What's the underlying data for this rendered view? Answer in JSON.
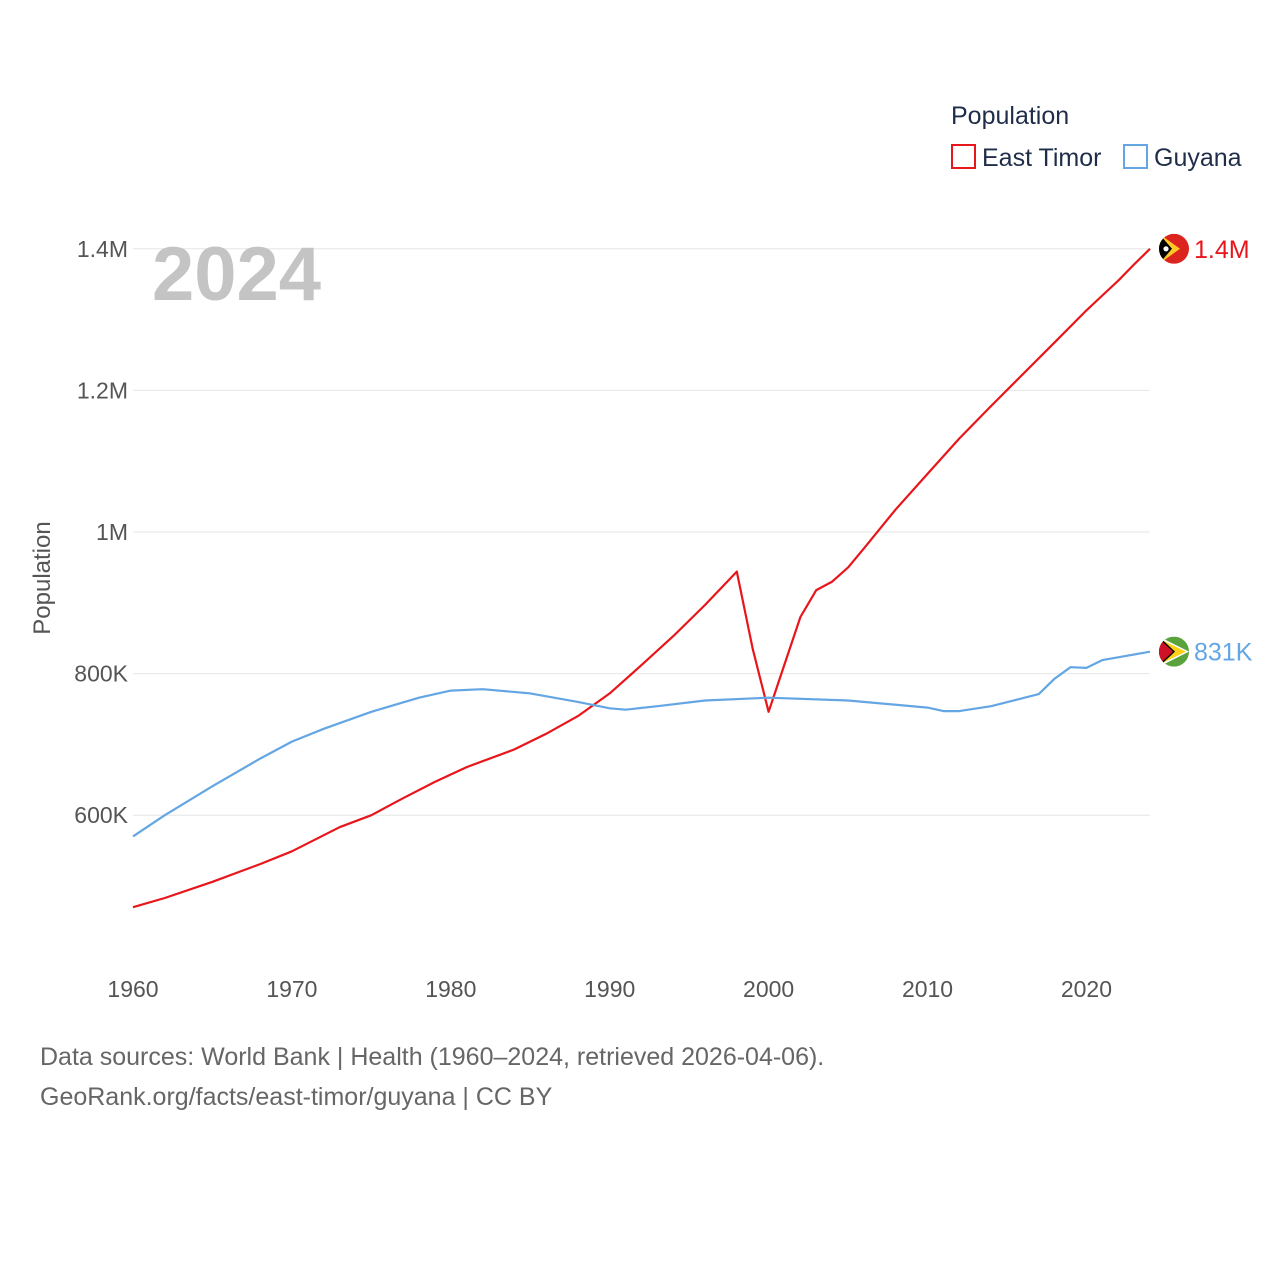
{
  "chart_data": {
    "type": "line",
    "year_label": "2024",
    "ylabel": "Population",
    "xlabel": "",
    "xlim": [
      1960,
      2024
    ],
    "ylim": [
      440000,
      1420000
    ],
    "x_ticks": [
      1960,
      1970,
      1980,
      1990,
      2000,
      2010,
      2020
    ],
    "x_tick_labels": [
      "1960",
      "1970",
      "1980",
      "1990",
      "2000",
      "2010",
      "2020"
    ],
    "y_ticks": [
      600000,
      800000,
      1000000,
      1200000,
      1400000
    ],
    "y_tick_labels": [
      "600K",
      "800K",
      "1M",
      "1.2M",
      "1.4M"
    ],
    "grid": true,
    "legend": {
      "title": "Population",
      "position": "top-right",
      "items": [
        {
          "name": "East Timor",
          "color": "#e8161b"
        },
        {
          "name": "Guyana",
          "color": "#64a6e4"
        }
      ]
    },
    "series": [
      {
        "name": "East Timor",
        "color": "#e8161b",
        "end_label": "1.4M",
        "flag_icon": "east-timor-flag-icon",
        "x": [
          1960,
          1962,
          1965,
          1968,
          1970,
          1973,
          1975,
          1977,
          1979,
          1981,
          1984,
          1986,
          1988,
          1990,
          1992,
          1994,
          1996,
          1998,
          1999,
          2000,
          2001,
          2002,
          2003,
          2004,
          2005,
          2006,
          2008,
          2010,
          2012,
          2014,
          2016,
          2018,
          2020,
          2021,
          2022,
          2023,
          2024
        ],
        "values": [
          470000,
          483000,
          506000,
          531000,
          549000,
          583000,
          600000,
          624000,
          647000,
          668000,
          693000,
          715000,
          740000,
          772000,
          812000,
          853000,
          897000,
          944000,
          835000,
          746000,
          813000,
          880000,
          918000,
          930000,
          950000,
          977000,
          1032000,
          1082000,
          1132000,
          1178000,
          1223000,
          1268000,
          1313000,
          1334000,
          1355000,
          1378000,
          1400000
        ]
      },
      {
        "name": "Guyana",
        "color": "#64a6e4",
        "end_label": "831K",
        "flag_icon": "guyana-flag-icon",
        "x": [
          1960,
          1962,
          1965,
          1968,
          1970,
          1972,
          1975,
          1978,
          1980,
          1982,
          1985,
          1988,
          1990,
          1991,
          1993,
          1996,
          2000,
          2005,
          2010,
          2011,
          2012,
          2014,
          2017,
          2018,
          2019,
          2020,
          2021,
          2022,
          2024
        ],
        "values": [
          570000,
          600000,
          641000,
          680000,
          704000,
          722000,
          746000,
          766000,
          776000,
          778000,
          772000,
          760000,
          751000,
          749000,
          754000,
          762000,
          766000,
          762000,
          752000,
          747000,
          747000,
          754000,
          771000,
          793000,
          809000,
          808000,
          819000,
          823000,
          831000
        ]
      }
    ],
    "source_line1": "Data sources: World Bank | Health (1960–2024, retrieved 2026-04-06).",
    "source_line2": "GeoRank.org/facts/east-timor/guyana | CC BY"
  }
}
